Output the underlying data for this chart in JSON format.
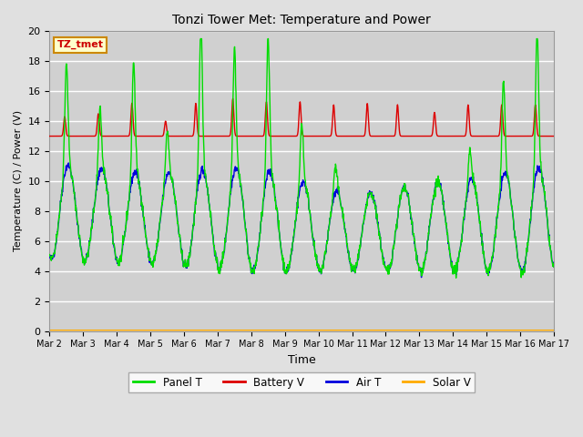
{
  "title": "Tonzi Tower Met: Temperature and Power",
  "xlabel": "Time",
  "ylabel": "Temperature (C) / Power (V)",
  "annotation": "TZ_tmet",
  "ylim": [
    0,
    20
  ],
  "bg_color": "#e0e0e0",
  "plot_bg_color": "#d0d0d0",
  "grid_color": "#ffffff",
  "legend_entries": [
    "Panel T",
    "Battery V",
    "Air T",
    "Solar V"
  ],
  "series_colors": [
    "#00dd00",
    "#dd0000",
    "#0000dd",
    "#ffaa00"
  ],
  "xtick_labels": [
    "Mar 2",
    "Mar 3",
    "Mar 4",
    "Mar 5",
    "Mar 6",
    "Mar 7",
    "Mar 8",
    "Mar 9",
    "Mar 10",
    "Mar 11",
    "Mar 12",
    "Mar 13",
    "Mar 14",
    "Mar 15",
    "Mar 16",
    "Mar 17"
  ],
  "annotation_bg": "#ffffcc",
  "annotation_border": "#cc8800",
  "annotation_text_color": "#cc0000",
  "figwidth": 6.4,
  "figheight": 4.8,
  "dpi": 100
}
